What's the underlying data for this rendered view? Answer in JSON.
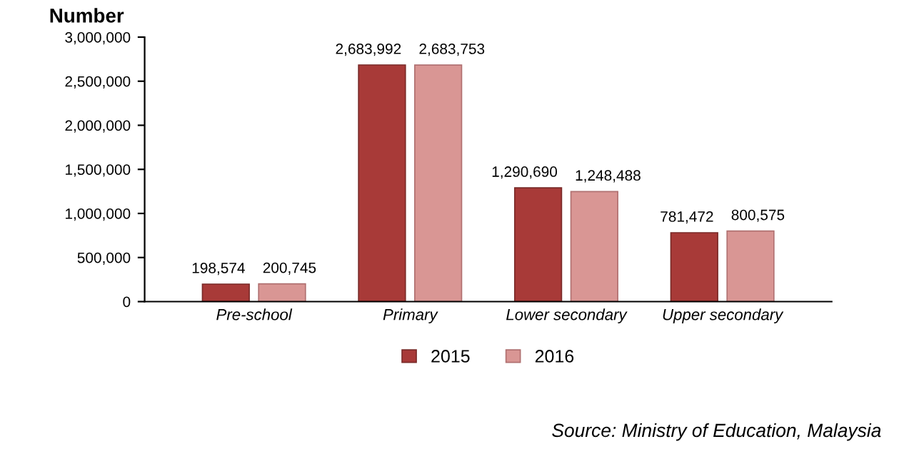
{
  "chart_data": {
    "type": "bar",
    "ylabel": "Number",
    "categories": [
      "Pre-school",
      "Primary",
      "Lower secondary",
      "Upper secondary"
    ],
    "series": [
      {
        "name": "2015",
        "color": "#a83a38",
        "values": [
          198574,
          2683992,
          1290690,
          781472
        ],
        "value_labels": [
          "198,574",
          "2,683,992",
          "1,290,690",
          "781,472"
        ]
      },
      {
        "name": "2016",
        "color": "#d99694",
        "values": [
          200745,
          2683753,
          1248488,
          800575
        ],
        "value_labels": [
          "200,745",
          "2,683,753",
          "1,248,488",
          "800,575"
        ]
      }
    ],
    "ylim": [
      0,
      3000000
    ],
    "yticks": [
      {
        "value": 0,
        "label": "0"
      },
      {
        "value": 500000,
        "label": "500,000"
      },
      {
        "value": 1000000,
        "label": "1,000,000"
      },
      {
        "value": 1500000,
        "label": "1,500,000"
      },
      {
        "value": 2000000,
        "label": "2,000,000"
      },
      {
        "value": 2500000,
        "label": "2,500,000"
      },
      {
        "value": 3000000,
        "label": "3,000,000"
      }
    ],
    "grid": false,
    "legend": "bottom",
    "annotations": [
      "Source: Ministry of Education, Malaysia"
    ]
  }
}
